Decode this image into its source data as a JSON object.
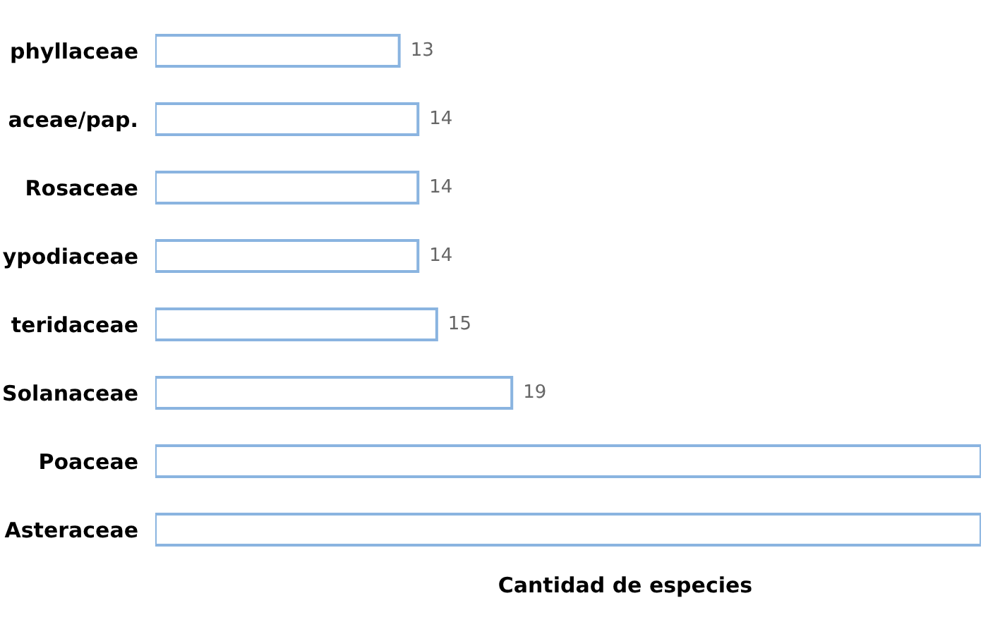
{
  "chart_data": {
    "type": "bar",
    "orientation": "horizontal",
    "xlabel": "Cantidad de especies",
    "categories": [
      "phyllaceae",
      "aceae/pap.",
      "Rosaceae",
      "ypodiaceae",
      "teridaceae",
      "Solanaceae",
      "Poaceae",
      "Asteraceae"
    ],
    "series": [
      {
        "color": "#8ab4e0",
        "values": [
          13,
          14,
          14,
          14,
          15,
          19,
          44,
          44
        ],
        "value_labels": [
          "13",
          "14",
          "14",
          "14",
          "15",
          "19",
          null,
          null
        ]
      }
    ],
    "xlim": [
      0,
      44
    ],
    "tick_labels": "y"
  }
}
